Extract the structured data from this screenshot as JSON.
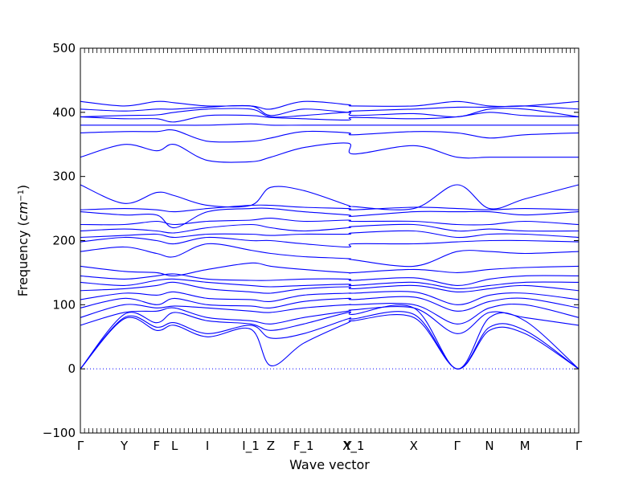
{
  "chart_data": {
    "type": "line",
    "title": "",
    "xlabel": "Wave vector",
    "ylabel": "Frequency ($cm^{-1}$)",
    "ylabel_parts": {
      "main": "Frequency (",
      "unit_base": "cm",
      "unit_sup": "−1",
      "close": ")"
    },
    "ylim": [
      -100,
      500
    ],
    "yticks": [
      -100,
      0,
      100,
      200,
      300,
      400,
      500
    ],
    "grid": false,
    "legend": "none",
    "line_color": "#0000ff",
    "zero_line_color": "#0000ff",
    "xlim": [
      0,
      1
    ],
    "high_symmetry_points": [
      {
        "label": "Γ",
        "x": 0.0
      },
      {
        "label": "Y",
        "x": 0.088
      },
      {
        "label": "F",
        "x": 0.153
      },
      {
        "label": "L",
        "x": 0.189
      },
      {
        "label": "I",
        "x": 0.255
      },
      {
        "label": "I_1",
        "x": 0.342
      },
      {
        "label": "Z",
        "x": 0.382
      },
      {
        "label": "F_1",
        "x": 0.448
      },
      {
        "label": "Y",
        "x": 0.537
      },
      {
        "label": "X_1",
        "x": 0.548
      },
      {
        "label": "X",
        "x": 0.669
      },
      {
        "label": "Γ",
        "x": 0.756
      },
      {
        "label": "N",
        "x": 0.821
      },
      {
        "label": "M",
        "x": 0.892
      },
      {
        "label": "Γ",
        "x": 1.0
      }
    ],
    "band_knots_x": [
      0.0,
      0.088,
      0.153,
      0.189,
      0.255,
      0.342,
      0.382,
      0.448,
      0.537,
      0.548,
      0.669,
      0.756,
      0.821,
      0.892,
      1.0
    ],
    "series": [
      {
        "values": [
          0,
          78,
          60,
          68,
          50,
          62,
          5,
          40,
          72,
          75,
          80,
          0,
          60,
          55,
          0
        ]
      },
      {
        "values": [
          0,
          80,
          65,
          72,
          55,
          68,
          48,
          55,
          78,
          78,
          85,
          0,
          65,
          60,
          0
        ]
      },
      {
        "values": [
          0,
          85,
          72,
          88,
          75,
          70,
          60,
          70,
          88,
          85,
          95,
          0,
          80,
          75,
          0
        ]
      },
      {
        "values": [
          68,
          88,
          90,
          95,
          80,
          75,
          70,
          80,
          90,
          92,
          95,
          55,
          88,
          80,
          68
        ]
      },
      {
        "values": [
          80,
          100,
          95,
          98,
          95,
          90,
          88,
          95,
          100,
          100,
          100,
          70,
          95,
          100,
          80
        ]
      },
      {
        "values": [
          95,
          110,
          100,
          110,
          100,
          98,
          95,
          105,
          110,
          108,
          112,
          90,
          105,
          110,
          95
        ]
      },
      {
        "values": [
          108,
          118,
          115,
          120,
          110,
          108,
          105,
          115,
          118,
          118,
          120,
          100,
          115,
          118,
          108
        ]
      },
      {
        "values": [
          122,
          125,
          130,
          135,
          125,
          120,
          118,
          125,
          128,
          125,
          130,
          120,
          125,
          130,
          122
        ]
      },
      {
        "values": [
          135,
          130,
          138,
          140,
          135,
          130,
          128,
          130,
          132,
          130,
          135,
          125,
          130,
          135,
          135
        ]
      },
      {
        "values": [
          145,
          140,
          145,
          148,
          140,
          138,
          138,
          140,
          140,
          138,
          142,
          130,
          140,
          145,
          145
        ]
      },
      {
        "values": [
          160,
          152,
          150,
          145,
          155,
          165,
          160,
          155,
          150,
          150,
          155,
          150,
          155,
          158,
          160
        ]
      },
      {
        "values": [
          183,
          190,
          180,
          175,
          195,
          185,
          180,
          175,
          172,
          170,
          160,
          183,
          183,
          180,
          183
        ]
      },
      {
        "values": [
          198,
          205,
          200,
          195,
          205,
          200,
          200,
          195,
          190,
          195,
          195,
          198,
          200,
          200,
          198
        ]
      },
      {
        "values": [
          205,
          208,
          210,
          205,
          210,
          210,
          208,
          210,
          210,
          212,
          215,
          205,
          210,
          210,
          205
        ]
      },
      {
        "values": [
          215,
          218,
          215,
          212,
          220,
          225,
          220,
          215,
          220,
          222,
          225,
          215,
          218,
          215,
          215
        ]
      },
      {
        "values": [
          225,
          225,
          230,
          225,
          230,
          232,
          235,
          230,
          232,
          230,
          230,
          225,
          225,
          230,
          225
        ]
      },
      {
        "values": [
          245,
          240,
          240,
          220,
          245,
          250,
          250,
          245,
          240,
          238,
          245,
          245,
          245,
          240,
          245
        ]
      },
      {
        "values": [
          248,
          250,
          248,
          245,
          250,
          255,
          255,
          252,
          250,
          248,
          252,
          250,
          248,
          250,
          248
        ]
      },
      {
        "values": [
          287,
          258,
          275,
          270,
          255,
          255,
          283,
          278,
          255,
          253,
          250,
          287,
          250,
          265,
          287
        ]
      },
      {
        "values": [
          330,
          350,
          340,
          350,
          325,
          323,
          330,
          345,
          352,
          335,
          348,
          330,
          330,
          330,
          330
        ]
      },
      {
        "values": [
          368,
          370,
          370,
          372,
          355,
          355,
          360,
          370,
          368,
          365,
          370,
          368,
          360,
          365,
          368
        ]
      },
      {
        "values": [
          380,
          380,
          380,
          380,
          380,
          382,
          380,
          380,
          380,
          380,
          380,
          380,
          380,
          380,
          380
        ]
      },
      {
        "values": [
          393,
          390,
          390,
          385,
          395,
          395,
          392,
          390,
          388,
          392,
          390,
          393,
          400,
          395,
          393
        ]
      },
      {
        "values": [
          393,
          395,
          396,
          400,
          405,
          405,
          393,
          395,
          400,
          395,
          398,
          393,
          405,
          405,
          393
        ]
      },
      {
        "values": [
          405,
          402,
          405,
          405,
          408,
          410,
          395,
          405,
          400,
          402,
          405,
          408,
          408,
          410,
          405
        ]
      },
      {
        "values": [
          417,
          410,
          417,
          415,
          410,
          410,
          405,
          417,
          412,
          410,
          410,
          417,
          410,
          410,
          417
        ]
      }
    ]
  }
}
